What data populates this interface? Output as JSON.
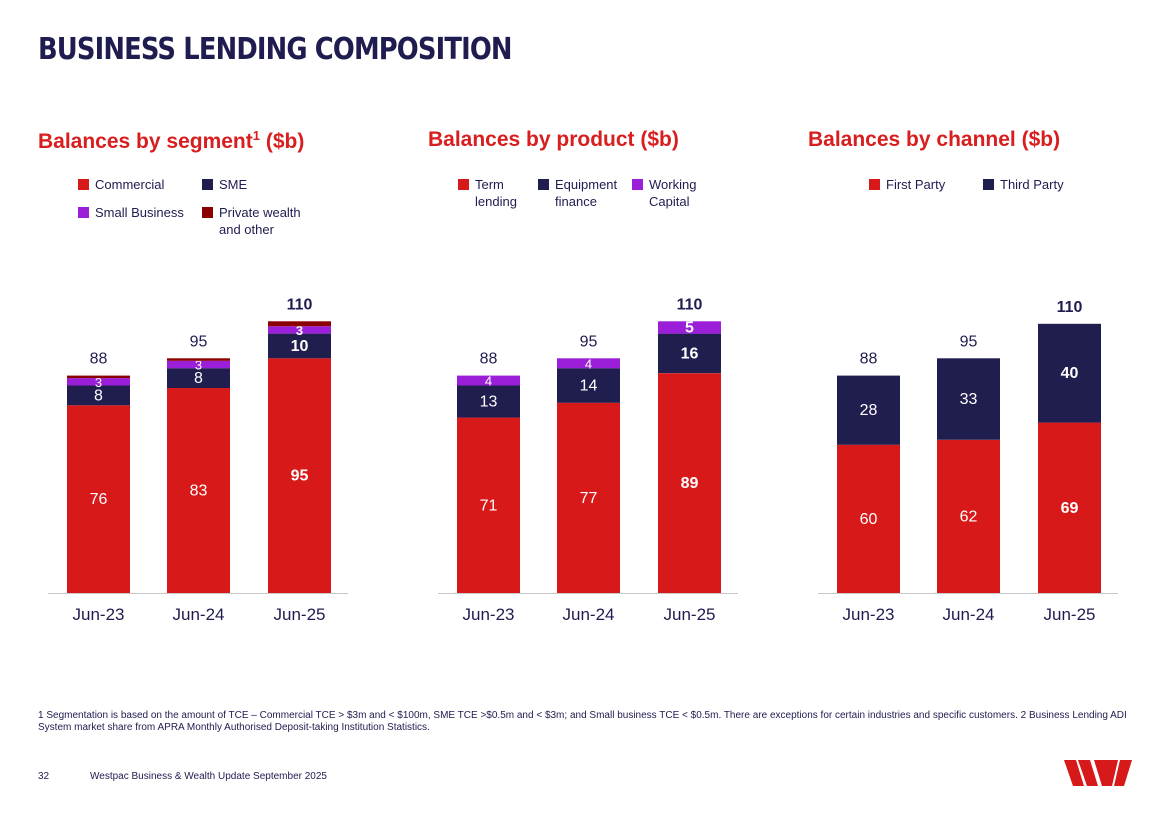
{
  "page": {
    "title": "BUSINESS LENDING COMPOSITION",
    "footnote": "1 Segmentation is based on the amount of TCE – Commercial TCE > $3m and < $100m, SME TCE >$0.5m and < $3m; and Small business TCE < $0.5m. There are exceptions for certain industries and specific customers. 2 Business Lending ADI System market share from APRA Monthly Authorised Deposit-taking Institution Statistics.",
    "page_number": "32",
    "document_name": "Westpac Business & Wealth Update September 2025",
    "logo_label": "Westpac logo"
  },
  "colors": {
    "red": "#d81919",
    "navy": "#201d4f",
    "purple": "#9b1fd9",
    "darkred": "#8b0000"
  },
  "chart_data": [
    {
      "type": "bar",
      "stacked": true,
      "title": "Balances by segment",
      "title_sup": "1",
      "title_suffix": " ($b)",
      "categories": [
        "Jun-23",
        "Jun-24",
        "Jun-25"
      ],
      "series": [
        {
          "name": "Commercial",
          "values": [
            76,
            83,
            95
          ],
          "color": "#d81919",
          "labels": [
            "76",
            "83",
            "95"
          ]
        },
        {
          "name": "SME",
          "values": [
            8,
            8,
            10
          ],
          "color": "#201d4f",
          "labels": [
            "8",
            "8",
            "10"
          ]
        },
        {
          "name": "Small Business",
          "values": [
            3,
            3,
            3
          ],
          "color": "#9b1fd9",
          "labels": [
            "3",
            "3",
            "3"
          ]
        },
        {
          "name": "Private wealth and other",
          "values": [
            1,
            1,
            2
          ],
          "color": "#8b0000",
          "labels": [
            "",
            "",
            ""
          ]
        }
      ],
      "totals": [
        "88",
        "95",
        "110"
      ],
      "legend": [
        {
          "text": "Commercial",
          "color": "#d81919"
        },
        {
          "text": "SME",
          "color": "#201d4f"
        },
        {
          "text": "Small Business",
          "color": "#9b1fd9"
        },
        {
          "text": "Private wealth and other",
          "color": "#8b0000"
        }
      ],
      "ylim": [
        0,
        120
      ]
    },
    {
      "type": "bar",
      "stacked": true,
      "title": "Balances by product ($b)",
      "categories": [
        "Jun-23",
        "Jun-24",
        "Jun-25"
      ],
      "series": [
        {
          "name": "Term lending",
          "values": [
            71,
            77,
            89
          ],
          "color": "#d81919",
          "labels": [
            "71",
            "77",
            "89"
          ]
        },
        {
          "name": "Equipment finance",
          "values": [
            13,
            14,
            16
          ],
          "color": "#201d4f",
          "labels": [
            "13",
            "14",
            "16"
          ]
        },
        {
          "name": "Working Capital",
          "values": [
            4,
            4,
            5
          ],
          "color": "#9b1fd9",
          "labels": [
            "4",
            "4",
            "5"
          ]
        }
      ],
      "totals": [
        "88",
        "95",
        "110"
      ],
      "legend": [
        {
          "text": "Term lending",
          "color": "#d81919"
        },
        {
          "text": "Equipment finance",
          "color": "#201d4f"
        },
        {
          "text": "Working Capital",
          "color": "#9b1fd9"
        }
      ],
      "ylim": [
        0,
        120
      ]
    },
    {
      "type": "bar",
      "stacked": true,
      "title": "Balances by channel ($b)",
      "categories": [
        "Jun-23",
        "Jun-24",
        "Jun-25"
      ],
      "series": [
        {
          "name": "First Party",
          "values": [
            60,
            62,
            69
          ],
          "color": "#d81919",
          "labels": [
            "60",
            "62",
            "69"
          ]
        },
        {
          "name": "Third Party",
          "values": [
            28,
            33,
            40
          ],
          "color": "#201d4f",
          "labels": [
            "28",
            "33",
            "40"
          ]
        }
      ],
      "totals": [
        "88",
        "95",
        "110"
      ],
      "legend": [
        {
          "text": "First Party",
          "color": "#d81919"
        },
        {
          "text": "Third Party",
          "color": "#201d4f"
        }
      ],
      "ylim": [
        0,
        120
      ]
    }
  ]
}
